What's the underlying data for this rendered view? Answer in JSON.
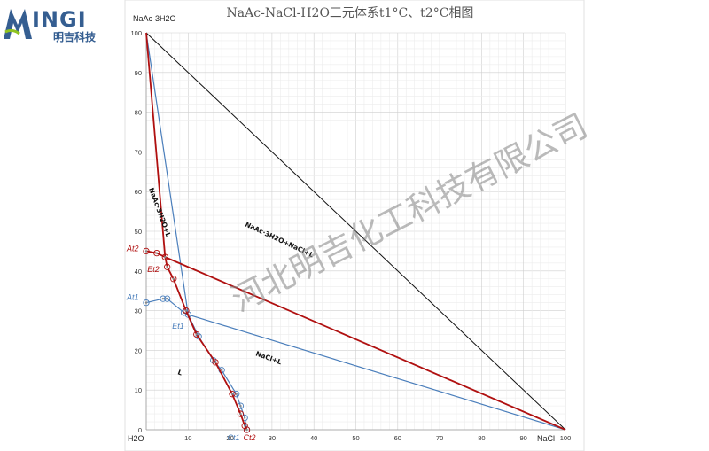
{
  "logo": {
    "text": "INGI",
    "subtext": "明吉科技",
    "mark": "M"
  },
  "watermark": "河北明吉化工科技有限公司",
  "chart_data": {
    "type": "line",
    "title": "NaAc-NaCl-H2O三元体系t1°C、t2°C相图",
    "xlim": [
      0,
      100
    ],
    "ylim": [
      0,
      100
    ],
    "grid": true,
    "x_ticks": [
      0,
      10,
      20,
      30,
      40,
      50,
      60,
      70,
      80,
      90,
      100
    ],
    "y_ticks": [
      0,
      10,
      20,
      30,
      40,
      50,
      60,
      70,
      80,
      90,
      100
    ],
    "axis_labels": {
      "top": "NaAc·3H2O",
      "origin": "H2O",
      "right": "NaCl"
    },
    "region_labels": [
      "NaAc·3H2O+L",
      "NaAc·3H2O+NaCl+L",
      "NaCl+L",
      "L"
    ],
    "series": [
      {
        "name": "t1",
        "color": "#4a7ebb",
        "solubility_curve": [
          [
            0,
            32
          ],
          [
            4,
            33
          ],
          [
            5,
            33
          ],
          [
            9,
            29.5
          ],
          [
            10,
            29
          ],
          [
            12.5,
            23.5
          ],
          [
            16,
            17.5
          ],
          [
            18,
            15
          ],
          [
            21.5,
            9
          ],
          [
            22.5,
            6
          ],
          [
            23.5,
            3
          ],
          [
            24,
            0
          ]
        ],
        "tie_lines": [
          [
            [
              0,
              100
            ],
            [
              10,
              29
            ]
          ],
          [
            [
              10,
              29
            ],
            [
              100,
              0
            ]
          ]
        ],
        "points": [
          {
            "label": "At1",
            "x": 0,
            "y": 32
          },
          {
            "label": "Et1",
            "x": 10,
            "y": 29
          },
          {
            "label": "Ct1",
            "x": 24,
            "y": 0
          }
        ]
      },
      {
        "name": "t2",
        "color": "#b01010",
        "solubility_curve": [
          [
            0,
            45
          ],
          [
            2.5,
            44.5
          ],
          [
            4.5,
            43.5
          ],
          [
            5,
            41
          ],
          [
            6.5,
            38
          ],
          [
            9.5,
            30
          ],
          [
            12,
            24
          ],
          [
            16.5,
            17
          ],
          [
            20.5,
            9
          ],
          [
            22.5,
            4
          ],
          [
            23.5,
            1
          ],
          [
            24,
            0
          ]
        ],
        "tie_lines": [
          [
            [
              0,
              100
            ],
            [
              4.5,
              43.5
            ]
          ],
          [
            [
              4.5,
              43.5
            ],
            [
              100,
              0
            ]
          ]
        ],
        "points": [
          {
            "label": "At2",
            "x": 0,
            "y": 45
          },
          {
            "label": "Et2",
            "x": 4.5,
            "y": 43.5
          },
          {
            "label": "Ct2",
            "x": 24,
            "y": 0
          }
        ]
      }
    ]
  }
}
